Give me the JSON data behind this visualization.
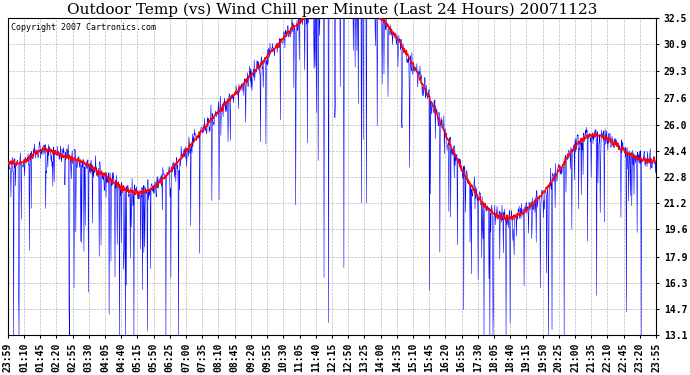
{
  "title": "Outdoor Temp (vs) Wind Chill per Minute (Last 24 Hours) 20071123",
  "copyright": "Copyright 2007 Cartronics.com",
  "ylim": [
    13.1,
    32.5
  ],
  "yticks": [
    13.1,
    14.7,
    16.3,
    17.9,
    19.6,
    21.2,
    22.8,
    24.4,
    26.0,
    27.6,
    29.3,
    30.9,
    32.5
  ],
  "xtick_labels": [
    "23:59",
    "01:10",
    "01:45",
    "02:20",
    "02:55",
    "03:30",
    "04:05",
    "04:40",
    "05:15",
    "05:50",
    "06:25",
    "07:00",
    "07:35",
    "08:10",
    "08:45",
    "09:20",
    "09:55",
    "10:30",
    "11:05",
    "11:40",
    "12:15",
    "12:50",
    "13:25",
    "14:00",
    "14:35",
    "15:10",
    "15:45",
    "16:20",
    "16:55",
    "17:30",
    "18:05",
    "18:40",
    "19:15",
    "19:50",
    "20:25",
    "21:00",
    "21:35",
    "22:10",
    "22:45",
    "23:20",
    "23:55"
  ],
  "outdoor_color": "#ff0000",
  "windchill_color": "#0000ff",
  "background_color": "#ffffff",
  "grid_color": "#aaaaaa",
  "title_fontsize": 11,
  "tick_fontsize": 7,
  "n_points": 1440
}
